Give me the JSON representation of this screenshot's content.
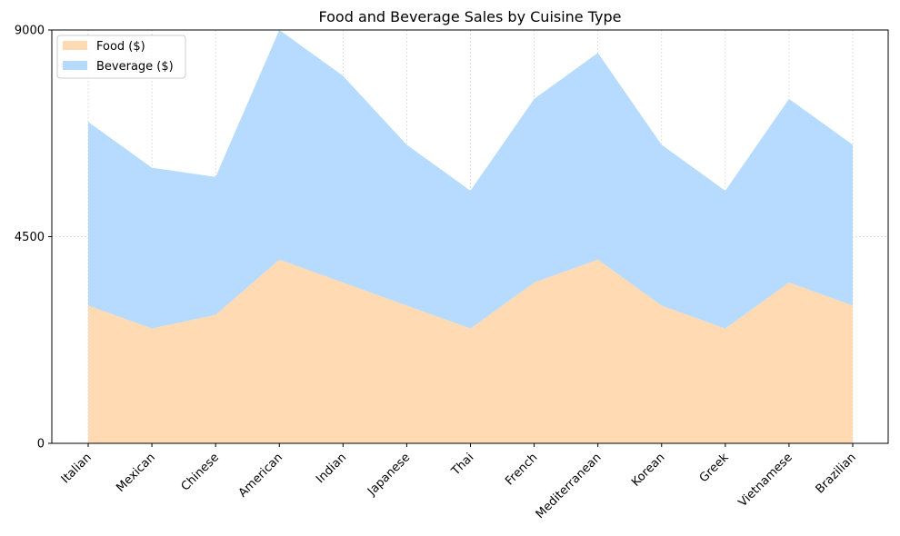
{
  "chart_data": {
    "type": "area",
    "stacked": true,
    "title": "Food and Beverage Sales by Cuisine Type",
    "xlabel": "",
    "ylabel": "",
    "categories": [
      "Italian",
      "Mexican",
      "Chinese",
      "American",
      "Indian",
      "Japanese",
      "Thai",
      "French",
      "Mediterranean",
      "Korean",
      "Greek",
      "Vietnamese",
      "Brazilian"
    ],
    "series": [
      {
        "name": "Food ($)",
        "color": "#ffdab3",
        "values": [
          3000,
          2500,
          2800,
          4000,
          3500,
          3000,
          2500,
          3500,
          4000,
          3000,
          2500,
          3500,
          3000
        ]
      },
      {
        "name": "Beverage ($)",
        "color": "#b7dbff",
        "values": [
          4000,
          3500,
          3000,
          5000,
          4500,
          3500,
          3000,
          4000,
          4500,
          3500,
          3000,
          4000,
          3500
        ]
      }
    ],
    "ylim": [
      0,
      9000
    ],
    "yticks": [
      0,
      4500,
      9000
    ],
    "grid": true,
    "legend": "upper left"
  }
}
